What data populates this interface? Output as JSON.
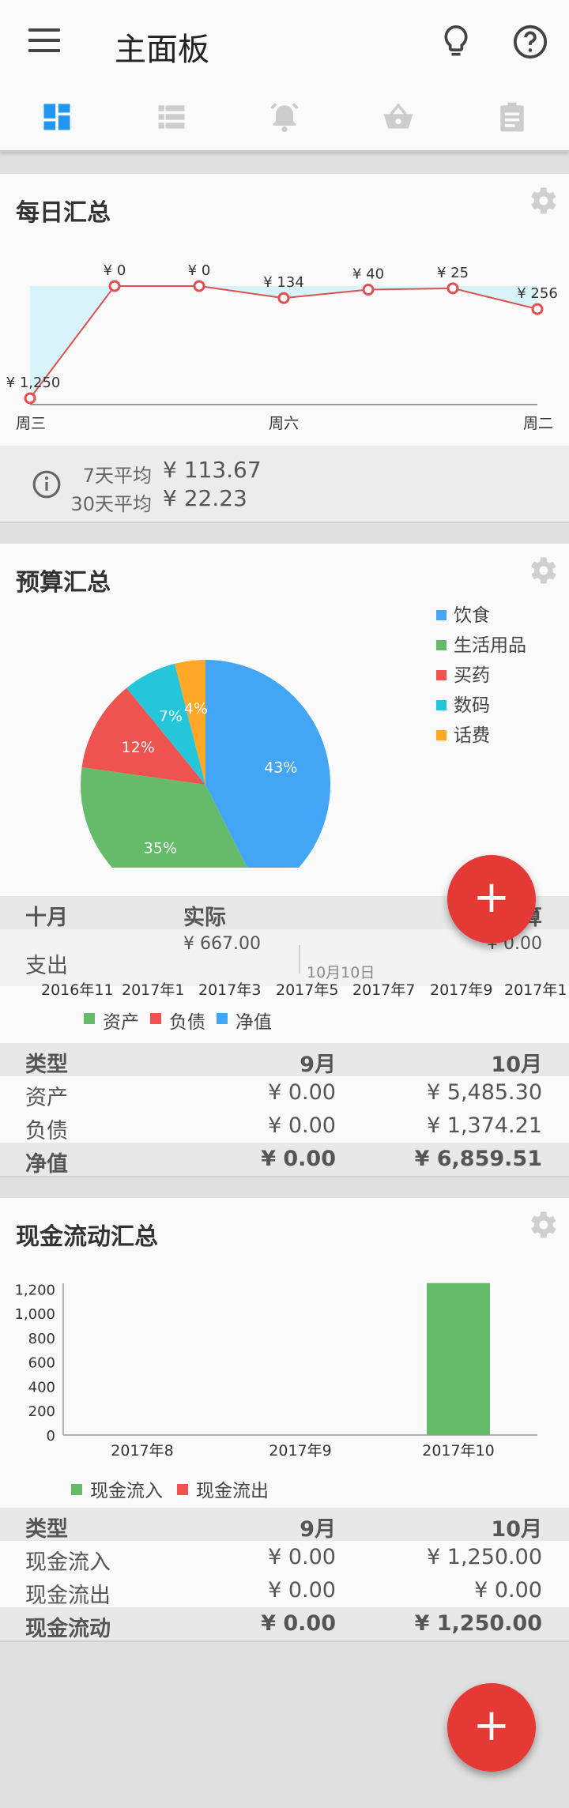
{
  "app": {
    "title": "主面板"
  },
  "icons": {
    "menu": "menu-icon",
    "bulb": "lightbulb-icon",
    "help": "help-circle-icon",
    "tabs": [
      "dashboard-icon",
      "list-icon",
      "alarm-icon",
      "basket-icon",
      "clipboard-icon"
    ],
    "settings": "gear-icon",
    "info": "info-icon",
    "fab": "plus-icon"
  },
  "colors": {
    "accent_tab": "#2196f3",
    "tab_inactive": "#cccccc",
    "fab": "#e53935",
    "food": "#42a5f5",
    "daily": "#66bb6a",
    "medicine": "#ef5350",
    "digital": "#26c6da",
    "phone": "#ffa726"
  },
  "daily_summary": {
    "title": "每日汇总",
    "avg7_label": "7天平均",
    "avg7_value": "¥ 113.67",
    "avg30_label": "30天平均",
    "avg30_value": "¥ 22.23"
  },
  "budget_summary": {
    "title": "预算汇总",
    "table_header": [
      "十月",
      "实际",
      "预算"
    ],
    "row_label": "支出",
    "row_actual": "¥ 667.00",
    "row_budget": "¥ 0.00",
    "marker_label": "10月10日"
  },
  "networth_summary": {
    "x_labels": [
      "2016年11",
      "2017年1",
      "2017年3",
      "2017年5",
      "2017年7",
      "2017年9",
      "2017年1"
    ],
    "legend": [
      "资产",
      "负债",
      "净值"
    ],
    "table": {
      "header": [
        "类型",
        "9月",
        "10月"
      ],
      "rows": [
        [
          "资产",
          "¥ 0.00",
          "¥ 5,485.30"
        ],
        [
          "负债",
          "¥ 0.00",
          "¥ 1,374.21"
        ]
      ],
      "total": [
        "净值",
        "¥ 0.00",
        "¥ 6,859.51"
      ]
    }
  },
  "cashflow_summary": {
    "title": "现金流动汇总",
    "table": {
      "header": [
        "类型",
        "9月",
        "10月"
      ],
      "rows": [
        [
          "现金流入",
          "¥ 0.00",
          "¥ 1,250.00"
        ],
        [
          "现金流出",
          "¥ 0.00",
          "¥ 0.00"
        ]
      ],
      "total": [
        "现金流动",
        "¥ 0.00",
        "¥ 1,250.00"
      ]
    }
  },
  "fab": {
    "label": "+"
  },
  "chart_data": [
    {
      "type": "line",
      "name": "daily",
      "x": [
        "周三",
        "",
        "",
        "周六",
        "",
        "",
        "周二"
      ],
      "values": [
        1250,
        0,
        0,
        134,
        40,
        25,
        256
      ],
      "labels": [
        "¥ 1,250",
        "¥ 0",
        "¥ 0",
        "¥ 134",
        "¥ 40",
        "¥ 25",
        "¥ 256"
      ],
      "x_tick_labels": [
        "周三",
        "周六",
        "周二"
      ]
    },
    {
      "type": "pie",
      "labels": [
        "饮食",
        "生活用品",
        "买药",
        "数码",
        "话费"
      ],
      "values": [
        43,
        35,
        12,
        7,
        4
      ],
      "value_labels": [
        "43%",
        "35%",
        "12%",
        "7%",
        "4%"
      ],
      "colors": [
        "#42a5f5",
        "#66bb6a",
        "#ef5350",
        "#26c6da",
        "#ffa726"
      ],
      "legend_position": "right"
    },
    {
      "type": "bar",
      "categories": [
        "2017年8",
        "2017年9",
        "2017年10"
      ],
      "series": [
        {
          "name": "现金流入",
          "values": [
            0,
            0,
            1250
          ]
        },
        {
          "name": "现金流出",
          "values": [
            0,
            0,
            0
          ]
        }
      ],
      "ylim": [
        0,
        1300
      ],
      "y_ticks": [
        0,
        200,
        400,
        600,
        800,
        1000,
        1200
      ],
      "y_tick_labels": [
        "0",
        "200",
        "400",
        "600",
        "800",
        "1,000",
        "1,200"
      ],
      "legend_position": "bottom-left"
    }
  ]
}
